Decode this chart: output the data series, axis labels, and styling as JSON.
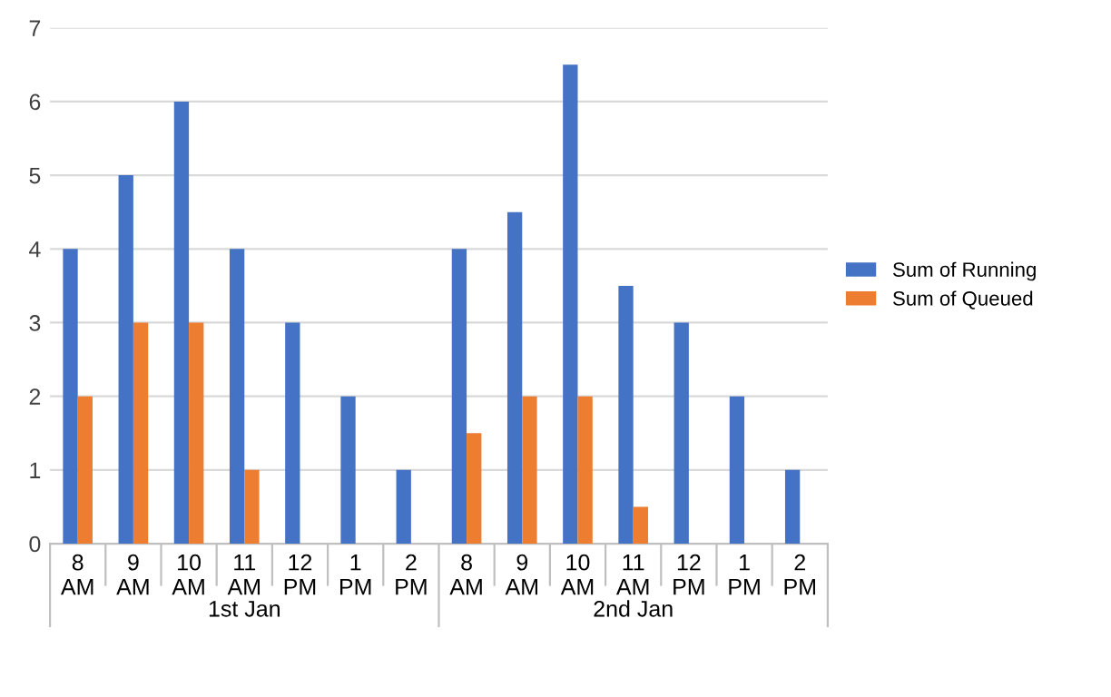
{
  "chart_data": {
    "type": "bar",
    "categories": [
      "8\nAM",
      "9\nAM",
      "10\nAM",
      "11\nAM",
      "12\nPM",
      "1\nPM",
      "2\nPM",
      "8\nAM",
      "9\nAM",
      "10\nAM",
      "11\nAM",
      "12\nPM",
      "1\nPM",
      "2\nPM"
    ],
    "series": [
      {
        "name": "Sum of Running",
        "color": "#4472c4",
        "values": [
          4,
          5,
          6,
          4,
          3,
          2,
          1,
          4,
          4.5,
          6.5,
          3.5,
          3,
          2,
          1
        ]
      },
      {
        "name": "Sum of Queued",
        "color": "#ed7d31",
        "values": [
          2,
          3,
          3,
          1,
          null,
          null,
          null,
          1.5,
          2,
          2,
          0.5,
          null,
          null,
          null
        ]
      }
    ],
    "ylim": [
      0,
      7
    ],
    "yticks": [
      0,
      1,
      2,
      3,
      4,
      5,
      6,
      7
    ],
    "grid": "y",
    "legend": "right",
    "annotations": [
      "1st Jan",
      "2nd Jan"
    ]
  }
}
